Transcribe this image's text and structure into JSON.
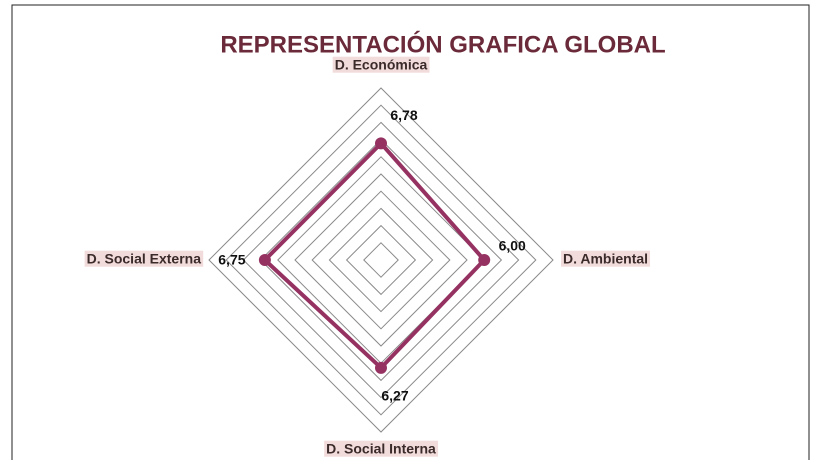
{
  "chart_data": {
    "type": "radar",
    "title": "REPRESENTACIÓN GRAFICA GLOBAL",
    "categories": [
      "D. Económica",
      "D. Ambiental",
      "D. Social Interna",
      "D. Social Externa"
    ],
    "series": [
      {
        "color": "#953262",
        "values": [
          6.78,
          6.0,
          6.27,
          6.75
        ],
        "value_labels": [
          "6,78",
          "6,00",
          "6,27",
          "6,75"
        ]
      }
    ],
    "rlim": [
      0,
      10
    ],
    "rticks": [
      0,
      1,
      2,
      3,
      4,
      5,
      6,
      7,
      8,
      9,
      10
    ],
    "grid": true
  }
}
